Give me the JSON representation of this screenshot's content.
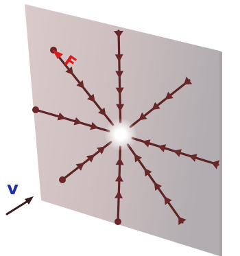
{
  "labels": {
    "force": "F",
    "velocity": "v"
  },
  "colors": {
    "plate_light": "#d9c8c8",
    "plate_dark": "#b3acb0",
    "field_line": "#5e2424",
    "field_arrow": "#6a2727",
    "center_glow": "#ffffff",
    "force_label": "#d81c1c",
    "velocity_label": "#1f31a8",
    "velocity_arrow": "#3a1a1a"
  },
  "field": {
    "direction": "inward",
    "center_symbol": "point-charge"
  }
}
